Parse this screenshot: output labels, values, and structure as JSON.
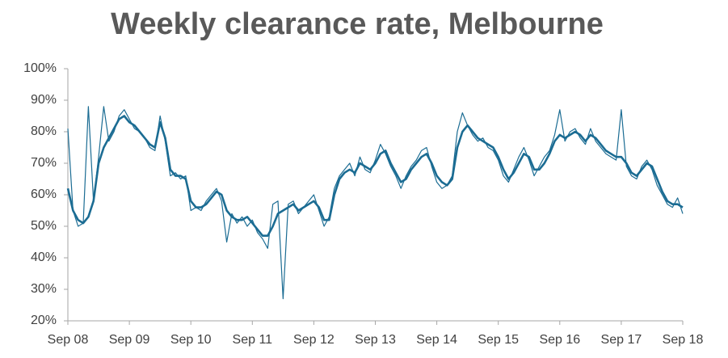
{
  "chart_data": {
    "type": "line",
    "title": "Weekly clearance rate, Melbourne",
    "x": [
      0,
      1,
      2,
      3,
      4,
      5,
      6,
      7,
      8,
      9,
      10,
      11,
      12,
      13,
      14,
      15,
      16,
      17,
      18,
      19,
      20,
      21,
      22,
      23,
      24,
      25,
      26,
      27,
      28,
      29,
      30,
      31,
      32,
      33,
      34,
      35,
      36,
      37,
      38,
      39,
      40,
      41,
      42,
      43,
      44,
      45,
      46,
      47,
      48,
      49,
      50,
      51,
      52,
      53,
      54,
      55,
      56,
      57,
      58,
      59,
      60,
      61,
      62,
      63,
      64,
      65,
      66,
      67,
      68,
      69,
      70,
      71,
      72,
      73,
      74,
      75,
      76,
      77,
      78,
      79,
      80,
      81,
      82,
      83,
      84,
      85,
      86,
      87,
      88,
      89,
      90,
      91,
      92,
      93,
      94,
      95,
      96,
      97,
      98,
      99,
      100,
      101,
      102,
      103,
      104,
      105,
      106,
      107,
      108,
      109,
      110,
      111,
      112,
      113,
      114,
      115,
      116,
      117,
      118,
      119,
      120
    ],
    "series": [
      {
        "color": "#1b6c93",
        "values": [
          81,
          55,
          50,
          51,
          88,
          58,
          72,
          88,
          77,
          80,
          85,
          87,
          84,
          81,
          80,
          78,
          75,
          74,
          85,
          77,
          66,
          67,
          65,
          66,
          55,
          56,
          55,
          58,
          60,
          62,
          58,
          45,
          54,
          51,
          53,
          50,
          52,
          48,
          46,
          43,
          57,
          58,
          27,
          57,
          58,
          54,
          56,
          58,
          60,
          55,
          50,
          53,
          62,
          66,
          68,
          70,
          66,
          72,
          68,
          67,
          71,
          76,
          73,
          69,
          66,
          62,
          66,
          69,
          71,
          74,
          75,
          69,
          64,
          62,
          63,
          66,
          80,
          86,
          82,
          79,
          77,
          78,
          75,
          74,
          71,
          66,
          64,
          68,
          72,
          75,
          71,
          66,
          69,
          72,
          74,
          79,
          87,
          77,
          80,
          81,
          78,
          76,
          81,
          77,
          75,
          73,
          72,
          71,
          87,
          69,
          66,
          65,
          69,
          71,
          68,
          63,
          60,
          57,
          56,
          59,
          54
        ]
      },
      {
        "color": "#1b6c93",
        "values": [
          62,
          55,
          52,
          51,
          53,
          58,
          70,
          75,
          78,
          81,
          84,
          85,
          83,
          82,
          80,
          78,
          76,
          75,
          83,
          78,
          68,
          66,
          66,
          65,
          58,
          56,
          56,
          57,
          59,
          61,
          60,
          55,
          53,
          52,
          52,
          53,
          51,
          49,
          47,
          47,
          50,
          54,
          55,
          56,
          57,
          55,
          56,
          57,
          58,
          56,
          52,
          52,
          60,
          65,
          67,
          68,
          67,
          70,
          69,
          68,
          70,
          73,
          74,
          70,
          67,
          64,
          65,
          68,
          70,
          72,
          73,
          70,
          66,
          64,
          63,
          65,
          75,
          80,
          82,
          80,
          78,
          77,
          76,
          75,
          72,
          68,
          65,
          67,
          70,
          73,
          72,
          68,
          68,
          70,
          73,
          77,
          79,
          78,
          79,
          80,
          79,
          77,
          79,
          78,
          76,
          74,
          73,
          72,
          72,
          70,
          67,
          66,
          68,
          70,
          69,
          65,
          61,
          58,
          57,
          57,
          56
        ]
      }
    ],
    "xlim": [
      0,
      120
    ],
    "xticks": [
      {
        "value": 0,
        "label": "Sep 08"
      },
      {
        "value": 12,
        "label": "Sep 09"
      },
      {
        "value": 24,
        "label": "Sep 10"
      },
      {
        "value": 36,
        "label": "Sep 11"
      },
      {
        "value": 48,
        "label": "Sep 12"
      },
      {
        "value": 60,
        "label": "Sep 13"
      },
      {
        "value": 72,
        "label": "Sep 14"
      },
      {
        "value": 84,
        "label": "Sep 15"
      },
      {
        "value": 96,
        "label": "Sep 16"
      },
      {
        "value": 108,
        "label": "Sep 17"
      },
      {
        "value": 120,
        "label": "Sep 18"
      }
    ],
    "ylim": [
      20,
      100
    ],
    "yticks": [
      {
        "value": 20,
        "label": "20%"
      },
      {
        "value": 30,
        "label": "30%"
      },
      {
        "value": 40,
        "label": "40%"
      },
      {
        "value": 50,
        "label": "50%"
      },
      {
        "value": 60,
        "label": "60%"
      },
      {
        "value": 70,
        "label": "70%"
      },
      {
        "value": 80,
        "label": "80%"
      },
      {
        "value": 90,
        "label": "90%"
      },
      {
        "value": 100,
        "label": "100%"
      }
    ],
    "grid": false
  }
}
